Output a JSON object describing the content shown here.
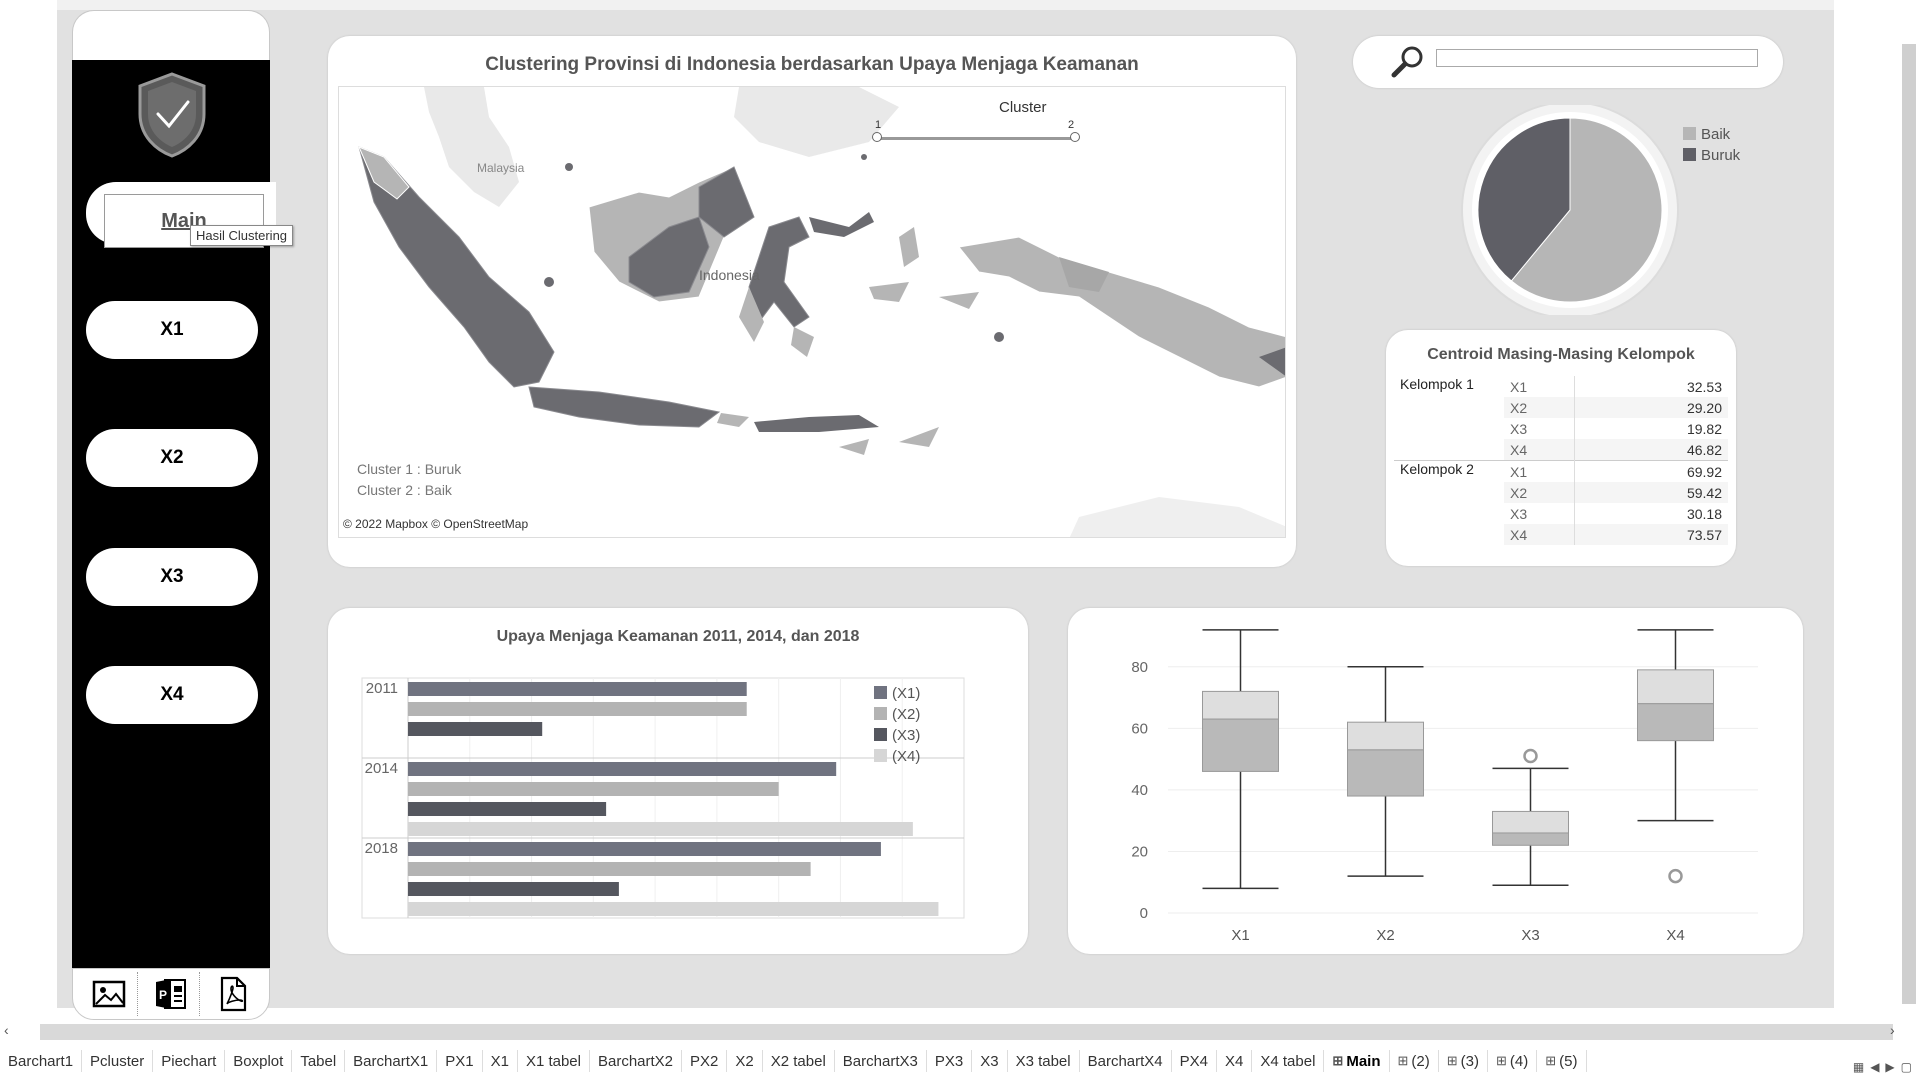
{
  "sidebar": {
    "nav": [
      {
        "label": "Main",
        "tooltip": "Hasil Clustering"
      },
      {
        "label": "X1"
      },
      {
        "label": "X2"
      },
      {
        "label": "X3"
      },
      {
        "label": "X4"
      }
    ],
    "bottom_icons": [
      "image-icon",
      "powerpoint-icon",
      "pdf-icon"
    ]
  },
  "map": {
    "title": "Clustering Provinsi di Indonesia berdasarkan Upaya Menjaga Keamanan",
    "legend_title": "Cluster",
    "legend_min": "1",
    "legend_max": "2",
    "label_malaysia": "Malaysia",
    "label_indonesia": "Indonesia",
    "note1": "Cluster 1 : Buruk",
    "note2": "Cluster 2 : Baik",
    "copyright": "© 2022 Mapbox © OpenStreetMap"
  },
  "search": {
    "icon": "search-icon",
    "value": ""
  },
  "pie": {
    "type": "pie",
    "series": [
      {
        "name": "Baik",
        "value": 61,
        "color": "#b6b6b6"
      },
      {
        "name": "Buruk",
        "value": 39,
        "color": "#5f5f66"
      }
    ]
  },
  "centroid": {
    "title": "Centroid Masing-Masing Kelompok",
    "groups": [
      {
        "name": "Kelompok 1",
        "rows": [
          [
            "X1",
            "32.53"
          ],
          [
            "X2",
            "29.20"
          ],
          [
            "X3",
            "19.82"
          ],
          [
            "X4",
            "46.82"
          ]
        ]
      },
      {
        "name": "Kelompok 2",
        "rows": [
          [
            "X1",
            "69.92"
          ],
          [
            "X2",
            "59.42"
          ],
          [
            "X3",
            "30.18"
          ],
          [
            "X4",
            "73.57"
          ]
        ]
      }
    ]
  },
  "chart_data": [
    {
      "type": "bar",
      "title": "Upaya Menjaga Keamanan 2011, 2014, dan 2018",
      "categories": [
        "2011",
        "2014",
        "2018"
      ],
      "series": [
        {
          "name": "(X1)",
          "color": "#707380",
          "values": [
            53,
            67,
            74
          ]
        },
        {
          "name": "(X2)",
          "color": "#b3b3b3",
          "values": [
            53,
            58,
            63
          ]
        },
        {
          "name": "(X3)",
          "color": "#55575f",
          "values": [
            21,
            31,
            33
          ]
        },
        {
          "name": "(X4)",
          "color": "#d6d6d6",
          "values": [
            null,
            79,
            83
          ]
        }
      ],
      "xlim": [
        0,
        87
      ],
      "legend": "top-right"
    },
    {
      "type": "box",
      "categories": [
        "X1",
        "X2",
        "X3",
        "X4"
      ],
      "ylim": [
        0,
        90
      ],
      "yticks": [
        0,
        20,
        40,
        60,
        80
      ],
      "boxes": [
        {
          "min": 8,
          "q1": 46,
          "median": 63,
          "q3": 72,
          "max": 92,
          "outliers": []
        },
        {
          "min": 12,
          "q1": 38,
          "median": 53,
          "q3": 62,
          "max": 80,
          "outliers": []
        },
        {
          "min": 9,
          "q1": 22,
          "median": 26,
          "q3": 33,
          "max": 47,
          "outliers": [
            51
          ]
        },
        {
          "min": 30,
          "q1": 56,
          "median": 68,
          "q3": 79,
          "max": 92,
          "outliers": [
            12
          ]
        }
      ]
    }
  ],
  "tabs": [
    "Barchart1",
    "Pcluster",
    "Piechart",
    "Boxplot",
    "Tabel",
    "BarchartX1",
    "PX1",
    "X1",
    "X1 tabel",
    "BarchartX2",
    "PX2",
    "X2",
    "X2 tabel",
    "BarchartX3",
    "PX3",
    "X3",
    "X3 tabel",
    "BarchartX4",
    "PX4",
    "X4",
    "X4 tabel",
    "Main",
    "(2)",
    "(3)",
    "(4)",
    "(5)"
  ],
  "active_tab": "Main"
}
